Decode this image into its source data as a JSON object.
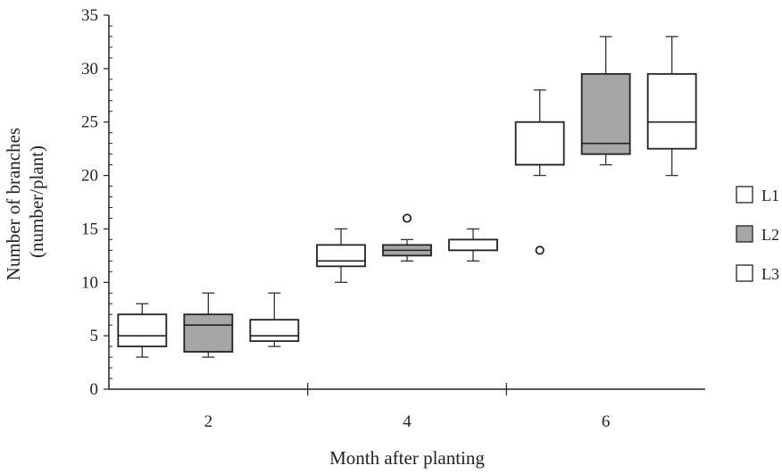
{
  "chart_data": {
    "type": "box",
    "title": "",
    "xlabel": "Month after planting",
    "ylabel_line1": "Number of branches",
    "ylabel_line2": "(number/plant)",
    "ylim": [
      0,
      35
    ],
    "yticks": [
      0,
      5,
      10,
      15,
      20,
      25,
      30,
      35
    ],
    "categories": [
      "2",
      "4",
      "6"
    ],
    "legend_position": "right",
    "series": [
      {
        "name": "L1",
        "color": "#ffffff",
        "boxes": [
          {
            "min": 3,
            "q1": 4,
            "median": 5,
            "q3": 7,
            "max": 8,
            "outliers": []
          },
          {
            "min": 10,
            "q1": 11.5,
            "median": 12,
            "q3": 13.5,
            "max": 15,
            "outliers": []
          },
          {
            "min": 20,
            "q1": 21,
            "median": 21,
            "q3": 25,
            "max": 28,
            "outliers": [
              13
            ]
          }
        ]
      },
      {
        "name": "L2",
        "color": "#a6a6a6",
        "boxes": [
          {
            "min": 3,
            "q1": 3.5,
            "median": 6,
            "q3": 7,
            "max": 9,
            "outliers": []
          },
          {
            "min": 12,
            "q1": 12.5,
            "median": 13,
            "q3": 13.5,
            "max": 14,
            "outliers": [
              16
            ]
          },
          {
            "min": 21,
            "q1": 22,
            "median": 23,
            "q3": 29.5,
            "max": 33,
            "outliers": []
          }
        ]
      },
      {
        "name": "L3",
        "color": "#ffffff",
        "boxes": [
          {
            "min": 4,
            "q1": 4.5,
            "median": 5,
            "q3": 6.5,
            "max": 9,
            "outliers": []
          },
          {
            "min": 12,
            "q1": 13,
            "median": 13,
            "q3": 14,
            "max": 15,
            "outliers": []
          },
          {
            "min": 20,
            "q1": 22.5,
            "median": 25,
            "q3": 29.5,
            "max": 33,
            "outliers": []
          }
        ]
      }
    ]
  }
}
